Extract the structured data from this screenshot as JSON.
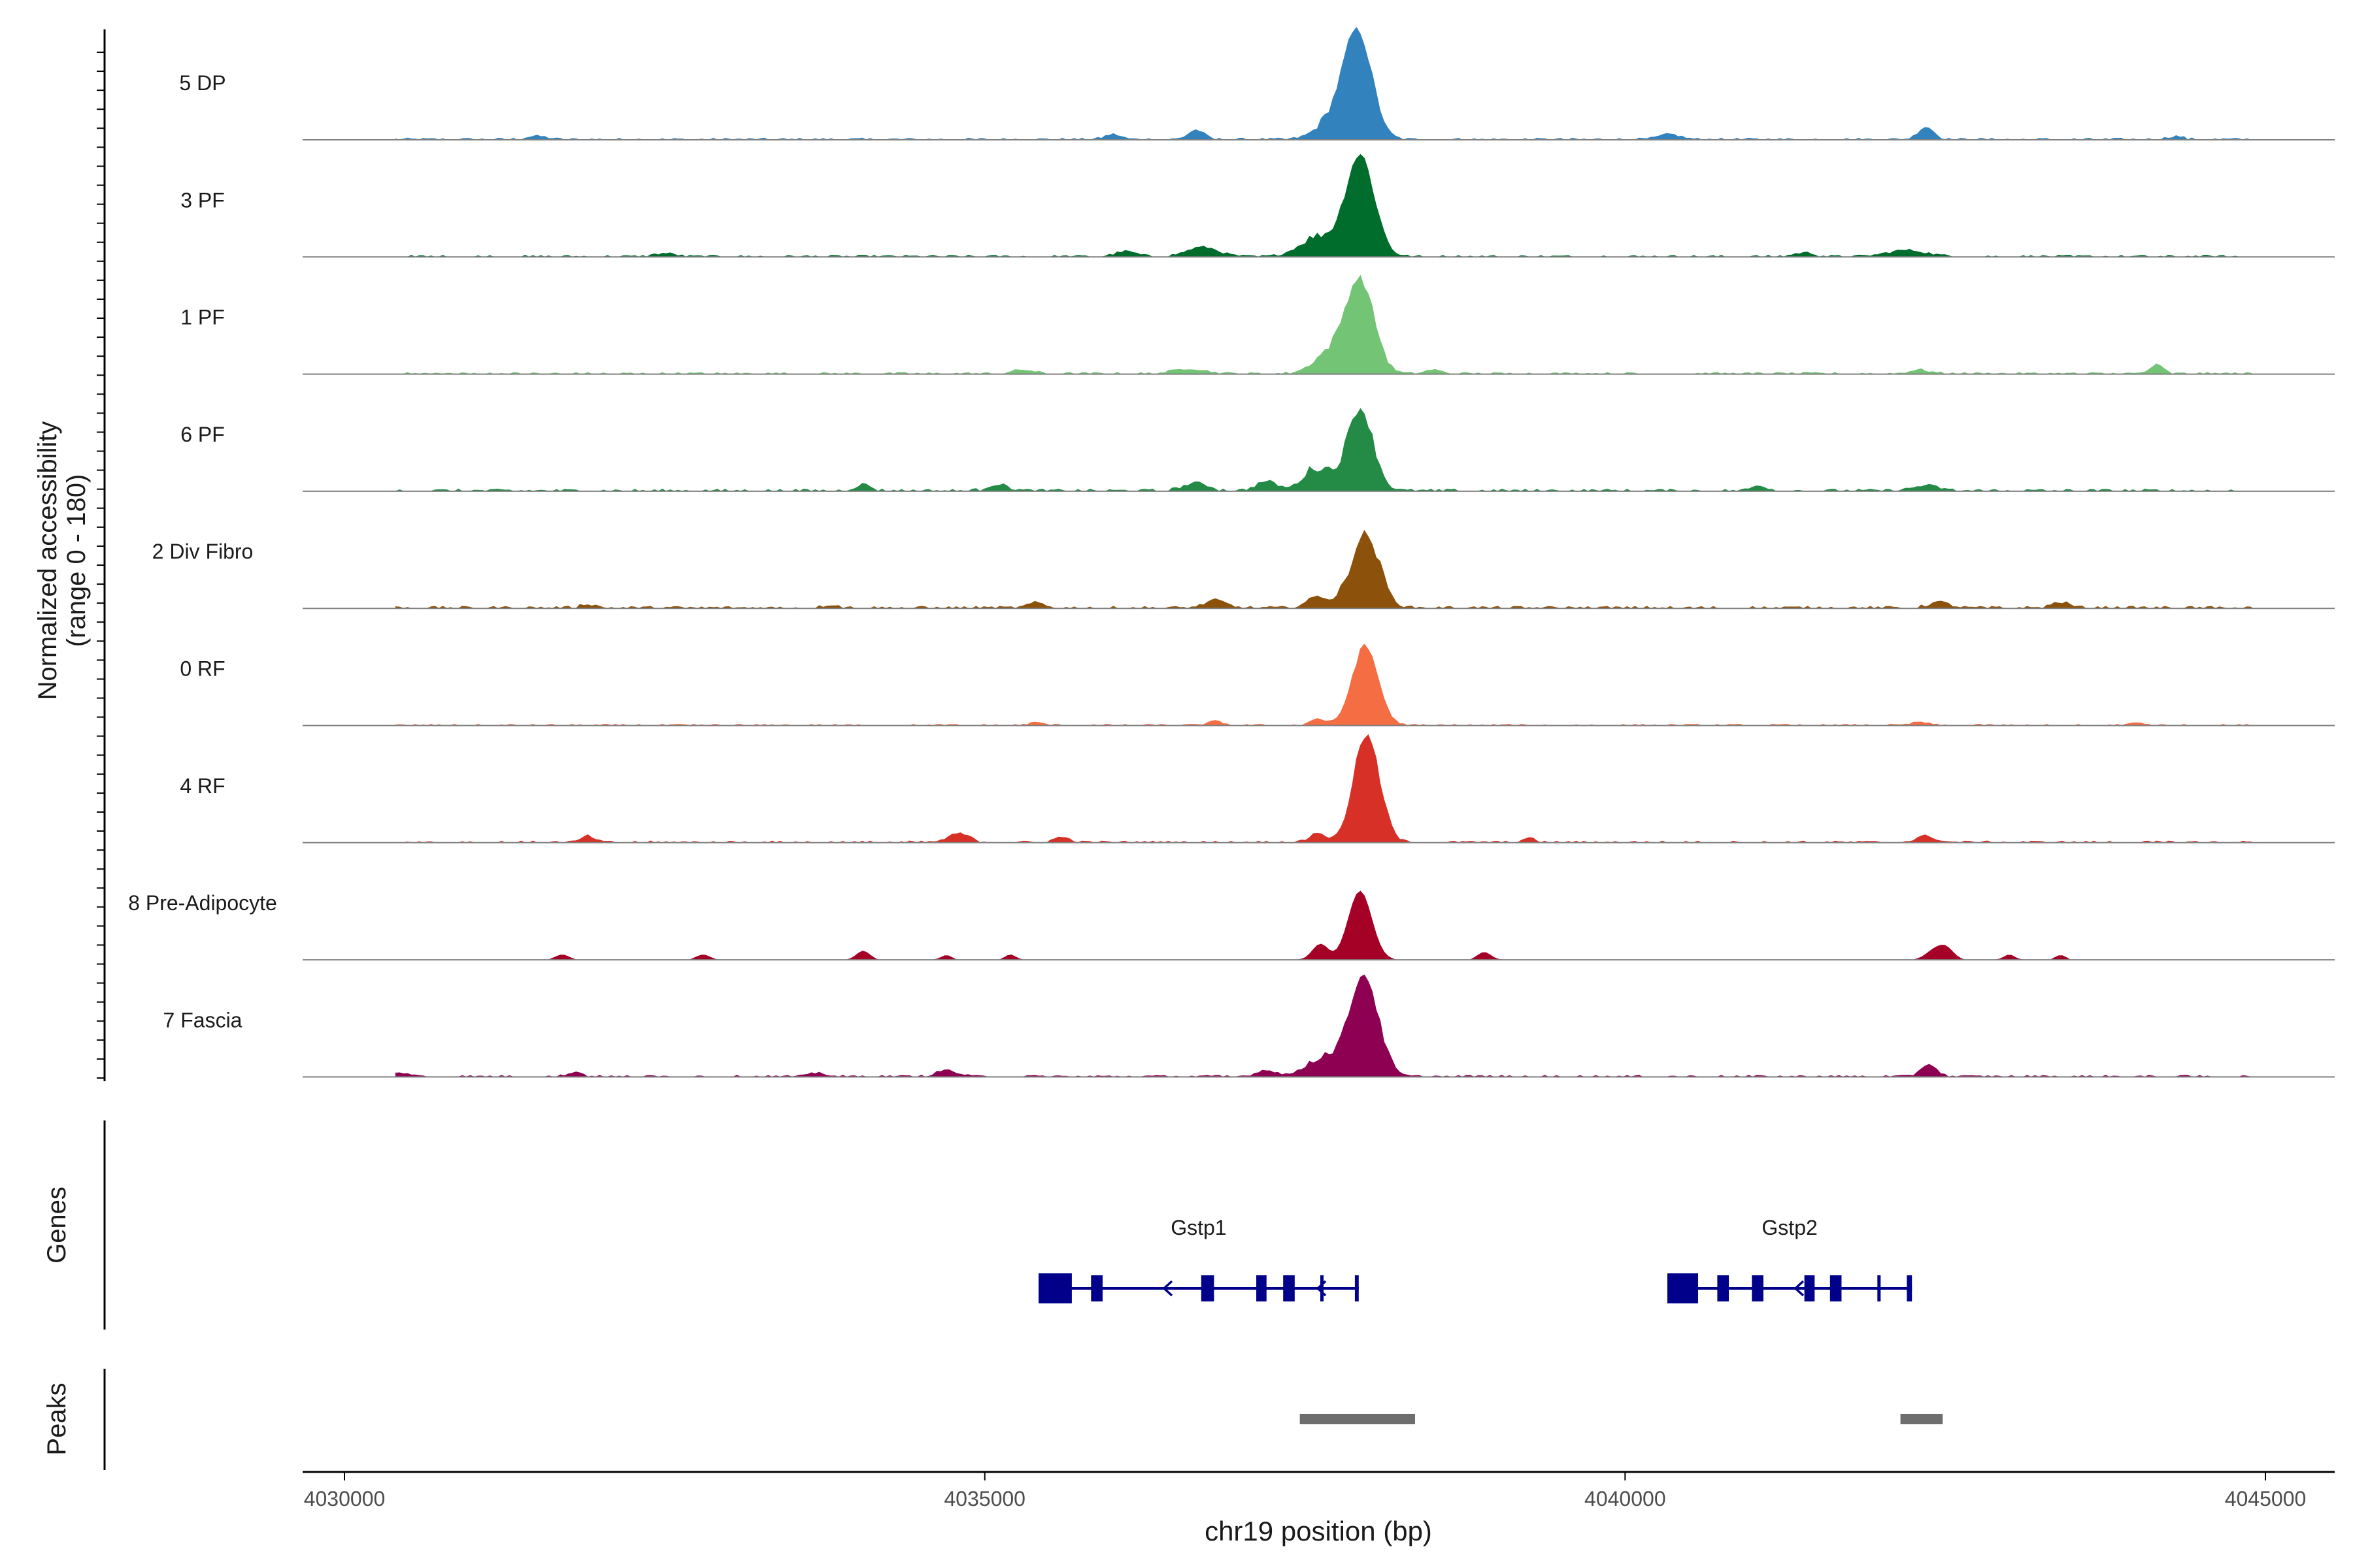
{
  "chart_data": {
    "type": "area",
    "title": "",
    "ylabel_line1": "Normalized accessibility",
    "ylabel_line2": "(range 0 - 180)",
    "xlabel": "chr19 position (bp)",
    "y_range": [
      0,
      180
    ],
    "xlim": [
      4029700,
      4045500
    ],
    "x_ticks": [
      4030000,
      4035000,
      4040000,
      4045000
    ],
    "x_tick_labels": [
      "4030000",
      "4035000",
      "4040000",
      "4045000"
    ],
    "tracks": [
      {
        "name": "5 DP",
        "color": "#3182BD",
        "peaks": [
          [
            4037910,
            170,
            110
          ],
          [
            4037700,
            25,
            120
          ],
          [
            4036650,
            15,
            60
          ],
          [
            4036000,
            8,
            60
          ],
          [
            4040350,
            8,
            80
          ],
          [
            4042350,
            20,
            60
          ],
          [
            4031500,
            5,
            80
          ],
          [
            4044300,
            5,
            60
          ]
        ],
        "noise": 4
      },
      {
        "name": "3 PF",
        "color": "#006D2C",
        "peaks": [
          [
            4037930,
            160,
            110
          ],
          [
            4037600,
            30,
            140
          ],
          [
            4036700,
            15,
            120
          ],
          [
            4036100,
            8,
            80
          ],
          [
            4042200,
            10,
            150
          ],
          [
            4041400,
            6,
            80
          ],
          [
            4032500,
            5,
            80
          ]
        ],
        "noise": 4
      },
      {
        "name": "1 PF",
        "color": "#74C476",
        "peaks": [
          [
            4037930,
            145,
            110
          ],
          [
            4037700,
            30,
            130
          ],
          [
            4036600,
            8,
            120
          ],
          [
            4035300,
            6,
            80
          ],
          [
            4044150,
            14,
            50
          ],
          [
            4042300,
            6,
            80
          ],
          [
            4038500,
            6,
            60
          ]
        ],
        "noise": 4
      },
      {
        "name": "6 PF",
        "color": "#238B45",
        "peaks": [
          [
            4037930,
            130,
            100
          ],
          [
            4037600,
            35,
            110
          ],
          [
            4037200,
            15,
            80
          ],
          [
            4036650,
            12,
            100
          ],
          [
            4035100,
            10,
            80
          ],
          [
            4034050,
            10,
            60
          ],
          [
            4042350,
            8,
            100
          ],
          [
            4041050,
            8,
            60
          ]
        ],
        "noise": 5
      },
      {
        "name": "2 Div Fibro",
        "color": "#8C510A",
        "peaks": [
          [
            4037970,
            115,
            110
          ],
          [
            4037600,
            18,
            80
          ],
          [
            4036800,
            12,
            80
          ],
          [
            4035400,
            8,
            60
          ],
          [
            4042450,
            9,
            80
          ],
          [
            4043400,
            9,
            70
          ],
          [
            4031900,
            6,
            60
          ],
          [
            4033800,
            5,
            60
          ]
        ],
        "noise": 5
      },
      {
        "name": "0 RF",
        "color": "#F46D43",
        "peaks": [
          [
            4037970,
            125,
            100
          ],
          [
            4037600,
            10,
            60
          ],
          [
            4036800,
            6,
            60
          ],
          [
            4035400,
            4,
            60
          ],
          [
            4042300,
            5,
            60
          ],
          [
            4044000,
            4,
            60
          ]
        ],
        "noise": 3
      },
      {
        "name": "4 RF",
        "color": "#D73027",
        "peaks": [
          [
            4037980,
            170,
            100
          ],
          [
            4037600,
            15,
            60
          ],
          [
            4034800,
            14,
            80
          ],
          [
            4035600,
            8,
            60
          ],
          [
            4031900,
            10,
            50
          ],
          [
            4042350,
            10,
            70
          ],
          [
            4039250,
            6,
            50
          ]
        ],
        "noise": 4
      },
      {
        "name": "8 Pre-Adipocyte",
        "color": "#A50026",
        "peaks": [
          [
            4037930,
            110,
            90
          ],
          [
            4037620,
            25,
            60
          ],
          [
            4034050,
            14,
            50
          ],
          [
            4042500,
            20,
            60
          ],
          [
            4042400,
            12,
            60
          ],
          [
            4038900,
            12,
            50
          ],
          [
            4031700,
            8,
            50
          ],
          [
            4032800,
            8,
            50
          ],
          [
            4034700,
            7,
            40
          ],
          [
            4035200,
            8,
            40
          ],
          [
            4043000,
            8,
            40
          ],
          [
            4043400,
            7,
            40
          ]
        ],
        "noise": 0
      },
      {
        "name": "7 Fascia",
        "color": "#8E0152",
        "peaks": [
          [
            4037960,
            160,
            110
          ],
          [
            4037650,
            30,
            130
          ],
          [
            4037200,
            10,
            80
          ],
          [
            4034700,
            10,
            80
          ],
          [
            4042370,
            20,
            60
          ],
          [
            4031800,
            7,
            60
          ],
          [
            4030450,
            6,
            60
          ],
          [
            4033700,
            6,
            60
          ]
        ],
        "noise": 4
      }
    ],
    "genes_label": "Genes",
    "genes": [
      {
        "name": "Gstp1",
        "start": 4035420,
        "end": 4037920,
        "strand": "-",
        "exons": [
          [
            4035420,
            4035680
          ],
          [
            4035830,
            4035920
          ],
          [
            4036690,
            4036790
          ],
          [
            4037120,
            4037200
          ],
          [
            4037330,
            4037420
          ],
          [
            4037620,
            4037640
          ],
          [
            4037890,
            4037920
          ]
        ],
        "arrows": [
          4036400,
          4037600
        ]
      },
      {
        "name": "Gstp2",
        "start": 4040330,
        "end": 4042240,
        "strand": "-",
        "exons": [
          [
            4040330,
            4040570
          ],
          [
            4040720,
            4040810
          ],
          [
            4040990,
            4041080
          ],
          [
            4041400,
            4041480
          ],
          [
            4041600,
            4041690
          ],
          [
            4041970,
            4041990
          ],
          [
            4042200,
            4042240
          ]
        ],
        "arrows": [
          4041330
        ]
      }
    ],
    "peaks_label": "Peaks",
    "peak_regions": [
      [
        4037460,
        4038360
      ],
      [
        4042150,
        4042480
      ]
    ]
  }
}
